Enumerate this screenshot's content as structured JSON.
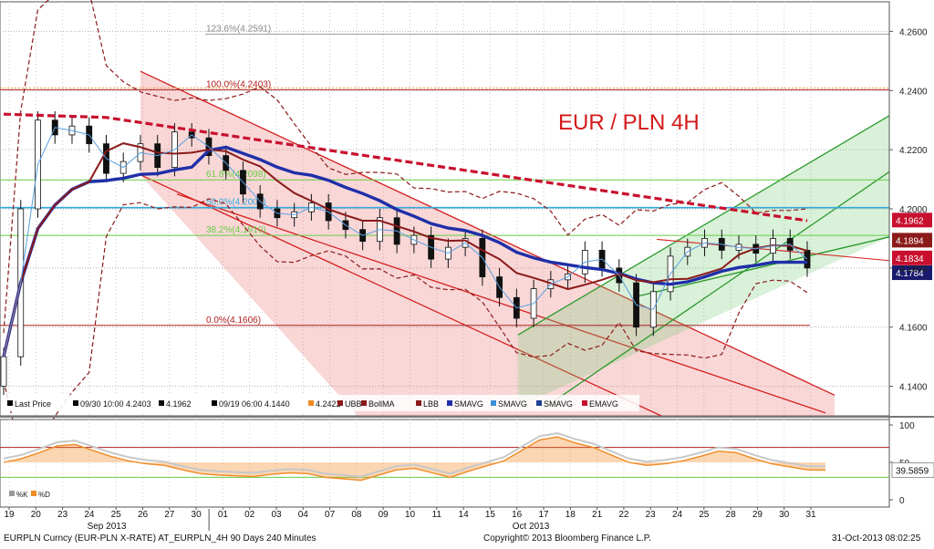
{
  "chart_data": [
    {
      "type": "candlestick",
      "title": "EUR / PLN 4H",
      "ylim": [
        4.13,
        4.27
      ],
      "yticks": [
        4.14,
        4.16,
        4.18,
        4.2,
        4.22,
        4.24,
        4.26
      ],
      "ytick_labels": [
        "4.1400",
        "4.1600",
        "4.1800",
        "4.2000",
        "4.2200",
        "4.2400",
        "4.2600"
      ],
      "x_day_labels": [
        "19",
        "20",
        "23",
        "24",
        "25",
        "26",
        "27",
        "30",
        "01",
        "02",
        "03",
        "04",
        "07",
        "08",
        "09",
        "10",
        "11",
        "14",
        "15",
        "16",
        "17",
        "18",
        "21",
        "22",
        "23",
        "24",
        "25",
        "28",
        "29",
        "30",
        "31"
      ],
      "x_month_labels": [
        "Sep 2013",
        "Oct 2013"
      ],
      "close_series": [
        4.15,
        4.2,
        4.23,
        4.225,
        4.228,
        4.222,
        4.212,
        4.216,
        4.222,
        4.214,
        4.226,
        4.224,
        4.218,
        4.213,
        4.205,
        4.2,
        4.197,
        4.199,
        4.202,
        4.196,
        4.193,
        4.189,
        4.197,
        4.188,
        4.191,
        4.183,
        4.187,
        4.19,
        4.177,
        4.17,
        4.163,
        4.173,
        4.176,
        4.178,
        4.186,
        4.18,
        4.175,
        4.16,
        4.172,
        4.184,
        4.187,
        4.19,
        4.186,
        4.188,
        4.185,
        4.19,
        4.186,
        4.18
      ],
      "fibonacci": [
        {
          "label": "123.6%(4.2591)",
          "value": 4.2591
        },
        {
          "label": "100.0%(4.2403)",
          "value": 4.2403
        },
        {
          "label": "61.8%(4.2098)",
          "value": 4.2098
        },
        {
          "label": "50.0%(4.2004)",
          "value": 4.2004
        },
        {
          "label": "38.2%(4.1910)",
          "value": 4.191
        },
        {
          "label": "0.0%(4.1606)",
          "value": 4.1606
        }
      ],
      "price_tags": [
        {
          "value": 4.1962,
          "label": "4.1962",
          "color": "#c8102e"
        },
        {
          "value": 4.1894,
          "label": "4.1894",
          "color": "#8b1a1a"
        },
        {
          "value": 4.1834,
          "label": "4.1834",
          "color": "#c8102e"
        },
        {
          "value": 4.1784,
          "label": "4.1784",
          "color": "#1a1a6e"
        }
      ],
      "legend": [
        {
          "label": "Last Price",
          "color": "#000000"
        },
        {
          "label": "09/30 10:00 4.2403",
          "color": "#000000"
        },
        {
          "label": "4.1962",
          "color": "#000000"
        },
        {
          "label": "09/19 06:00 4.1440",
          "color": "#000000"
        },
        {
          "label": "4.2422",
          "color": "#f08a24"
        },
        {
          "label": "UBB",
          "color": "#8b1a1a"
        },
        {
          "label": "BollMA",
          "color": "#8b1a1a"
        },
        {
          "label": "LBB",
          "color": "#8b1a1a"
        },
        {
          "label": "SMAVG",
          "color": "#1f2fa8"
        },
        {
          "label": "SMAVG",
          "color": "#3a8fd6"
        },
        {
          "label": "SMAVG",
          "color": "#1f3f8f"
        },
        {
          "label": "EMAVG",
          "color": "#c8102e"
        }
      ],
      "colors": {
        "ma_blue": "#1f2fa8",
        "boll_mid": "#8b1a1a",
        "ema_red": "#c8102e",
        "channel_red": "#d42020",
        "channel_green": "#2a9a2a",
        "fib_green": "#66cc44",
        "fib_cyan": "#33aadd"
      }
    },
    {
      "type": "line",
      "ylim": [
        0,
        100
      ],
      "yticks": [
        0,
        50,
        100
      ],
      "ytick_labels": [
        "0",
        "50",
        "100"
      ],
      "reference_lines": [
        70,
        30
      ],
      "last_value": 39.5859,
      "last_value_label": "39.5859",
      "values": [
        50,
        55,
        63,
        72,
        74,
        66,
        58,
        52,
        48,
        46,
        40,
        35,
        33,
        32,
        31,
        34,
        36,
        35,
        30,
        28,
        26,
        33,
        40,
        42,
        36,
        30,
        38,
        45,
        52,
        66,
        80,
        84,
        76,
        70,
        60,
        50,
        46,
        48,
        52,
        58,
        65,
        63,
        55,
        48,
        44,
        40,
        39.6
      ],
      "legend": [
        {
          "label": "%K",
          "color": "#999999"
        },
        {
          "label": "%D",
          "color": "#f08a24"
        }
      ]
    }
  ],
  "footer": {
    "left": "EURPLN Curncy (EUR-PLN X-RATE) AT_EURPLN_4H 90 Days 240 Minutes",
    "center": "Copyright© 2013 Bloomberg Finance L.P.",
    "right": "31-Oct-2013 08:02:25"
  }
}
